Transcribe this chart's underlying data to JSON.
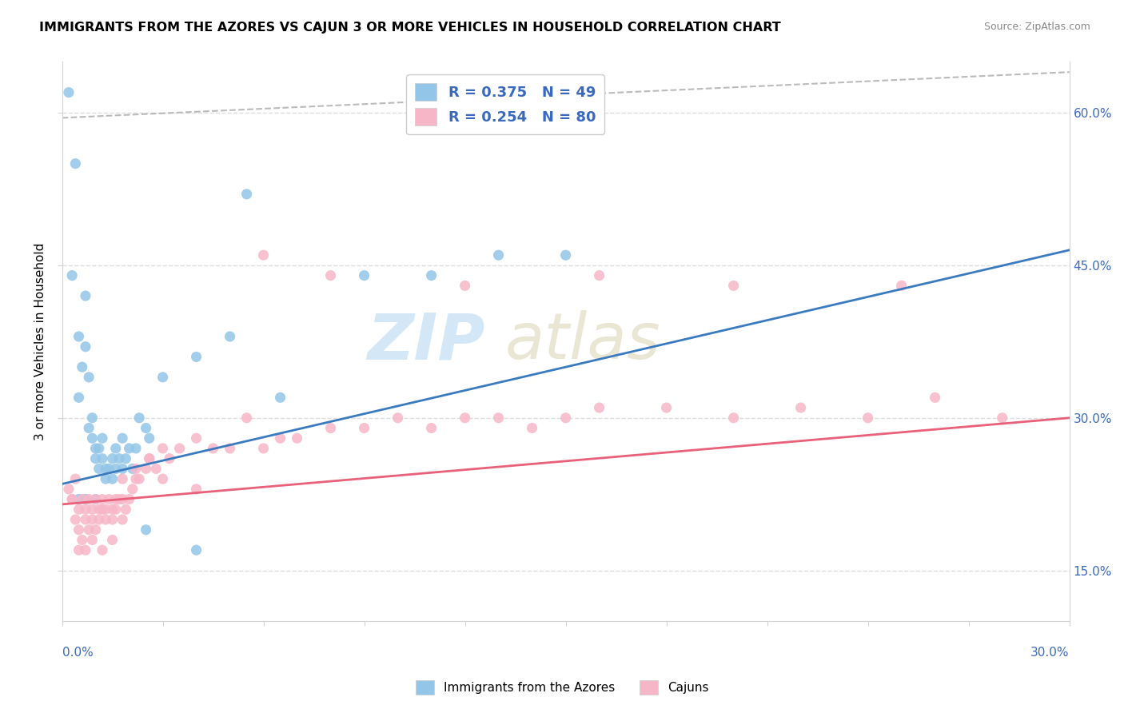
{
  "title": "IMMIGRANTS FROM THE AZORES VS CAJUN 3 OR MORE VEHICLES IN HOUSEHOLD CORRELATION CHART",
  "source": "Source: ZipAtlas.com",
  "ylabel": "3 or more Vehicles in Household",
  "xmin": 0.0,
  "xmax": 0.3,
  "ymin": 0.1,
  "ymax": 0.65,
  "blue_R": 0.375,
  "blue_N": 49,
  "pink_R": 0.254,
  "pink_N": 80,
  "blue_color": "#92c5e8",
  "pink_color": "#f7b6c8",
  "blue_line_color": "#3a7abf",
  "pink_line_color": "#e8607a",
  "legend_text_color": "#3a6abf",
  "watermark_ZIP": "ZIP",
  "watermark_atlas": "atlas",
  "blue_scatter_x": [
    0.002,
    0.003,
    0.004,
    0.005,
    0.005,
    0.006,
    0.007,
    0.007,
    0.008,
    0.008,
    0.009,
    0.009,
    0.01,
    0.01,
    0.011,
    0.011,
    0.012,
    0.012,
    0.013,
    0.013,
    0.014,
    0.015,
    0.015,
    0.016,
    0.016,
    0.017,
    0.018,
    0.018,
    0.019,
    0.02,
    0.021,
    0.022,
    0.023,
    0.025,
    0.026,
    0.03,
    0.04,
    0.05,
    0.055,
    0.065,
    0.09,
    0.11,
    0.13,
    0.15,
    0.005,
    0.007,
    0.01,
    0.025,
    0.04
  ],
  "blue_scatter_y": [
    0.62,
    0.44,
    0.55,
    0.38,
    0.32,
    0.35,
    0.42,
    0.37,
    0.34,
    0.29,
    0.3,
    0.28,
    0.26,
    0.27,
    0.27,
    0.25,
    0.26,
    0.28,
    0.25,
    0.24,
    0.25,
    0.26,
    0.24,
    0.27,
    0.25,
    0.26,
    0.28,
    0.25,
    0.26,
    0.27,
    0.25,
    0.27,
    0.3,
    0.29,
    0.28,
    0.34,
    0.36,
    0.38,
    0.52,
    0.32,
    0.44,
    0.44,
    0.46,
    0.46,
    0.22,
    0.22,
    0.22,
    0.19,
    0.17
  ],
  "pink_scatter_x": [
    0.002,
    0.003,
    0.004,
    0.004,
    0.005,
    0.005,
    0.006,
    0.006,
    0.007,
    0.007,
    0.008,
    0.008,
    0.009,
    0.009,
    0.01,
    0.01,
    0.011,
    0.011,
    0.012,
    0.012,
    0.013,
    0.013,
    0.014,
    0.015,
    0.015,
    0.016,
    0.016,
    0.017,
    0.018,
    0.018,
    0.019,
    0.02,
    0.021,
    0.022,
    0.023,
    0.025,
    0.026,
    0.028,
    0.03,
    0.032,
    0.035,
    0.04,
    0.045,
    0.05,
    0.055,
    0.06,
    0.065,
    0.07,
    0.08,
    0.09,
    0.1,
    0.11,
    0.12,
    0.13,
    0.14,
    0.15,
    0.16,
    0.18,
    0.2,
    0.22,
    0.24,
    0.26,
    0.28,
    0.003,
    0.005,
    0.007,
    0.009,
    0.012,
    0.015,
    0.018,
    0.022,
    0.026,
    0.03,
    0.04,
    0.06,
    0.08,
    0.12,
    0.16,
    0.2,
    0.25
  ],
  "pink_scatter_y": [
    0.23,
    0.22,
    0.24,
    0.2,
    0.21,
    0.19,
    0.22,
    0.18,
    0.2,
    0.21,
    0.19,
    0.22,
    0.2,
    0.21,
    0.22,
    0.19,
    0.21,
    0.2,
    0.22,
    0.21,
    0.2,
    0.21,
    0.22,
    0.2,
    0.21,
    0.22,
    0.21,
    0.22,
    0.24,
    0.2,
    0.21,
    0.22,
    0.23,
    0.25,
    0.24,
    0.25,
    0.26,
    0.25,
    0.27,
    0.26,
    0.27,
    0.28,
    0.27,
    0.27,
    0.3,
    0.27,
    0.28,
    0.28,
    0.29,
    0.29,
    0.3,
    0.29,
    0.3,
    0.3,
    0.29,
    0.3,
    0.31,
    0.31,
    0.3,
    0.31,
    0.3,
    0.32,
    0.3,
    0.22,
    0.17,
    0.17,
    0.18,
    0.17,
    0.18,
    0.22,
    0.24,
    0.26,
    0.24,
    0.23,
    0.46,
    0.44,
    0.43,
    0.44,
    0.43,
    0.43
  ]
}
